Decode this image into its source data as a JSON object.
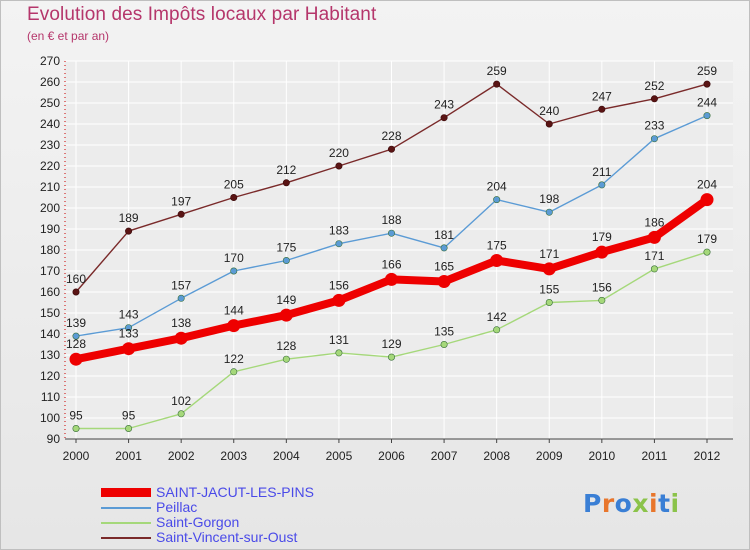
{
  "header": {
    "title": "Evolution des Impôts locaux par Habitant",
    "subtitle": "(en € et par an)"
  },
  "brand": {
    "text": "Proxiti",
    "letter_colors": [
      "#3a7fd5",
      "#e8762c",
      "#3a7fd5",
      "#8bc34a",
      "#e8762c",
      "#3a7fd5",
      "#8bc34a"
    ]
  },
  "chart_data": {
    "type": "line",
    "x": [
      "2000",
      "2001",
      "2002",
      "2003",
      "2004",
      "2005",
      "2006",
      "2007",
      "2008",
      "2009",
      "2010",
      "2011",
      "2012"
    ],
    "ylim": [
      90,
      270
    ],
    "yticks": [
      90,
      100,
      110,
      120,
      130,
      140,
      150,
      160,
      170,
      180,
      190,
      200,
      210,
      220,
      230,
      240,
      250,
      260,
      270
    ],
    "grid": true,
    "legend_position": "bottom-left",
    "series": [
      {
        "name": "SAINT-JACUT-LES-PINS",
        "color": "#ee0000",
        "bold": true,
        "values": [
          128,
          133,
          138,
          144,
          149,
          156,
          166,
          165,
          175,
          171,
          179,
          186,
          204
        ]
      },
      {
        "name": "Peillac",
        "color": "#5b9bd5",
        "bold": false,
        "values": [
          139,
          143,
          157,
          170,
          175,
          183,
          188,
          181,
          204,
          198,
          211,
          233,
          244
        ]
      },
      {
        "name": "Saint-Gorgon",
        "color": "#a5d87a",
        "bold": false,
        "values": [
          95,
          95,
          102,
          122,
          128,
          131,
          129,
          135,
          142,
          155,
          156,
          171,
          179
        ]
      },
      {
        "name": "Saint-Vincent-sur-Oust",
        "color": "#7a2a2a",
        "bold": false,
        "values": [
          160,
          189,
          197,
          205,
          212,
          220,
          228,
          243,
          259,
          240,
          247,
          252,
          259
        ]
      }
    ]
  }
}
